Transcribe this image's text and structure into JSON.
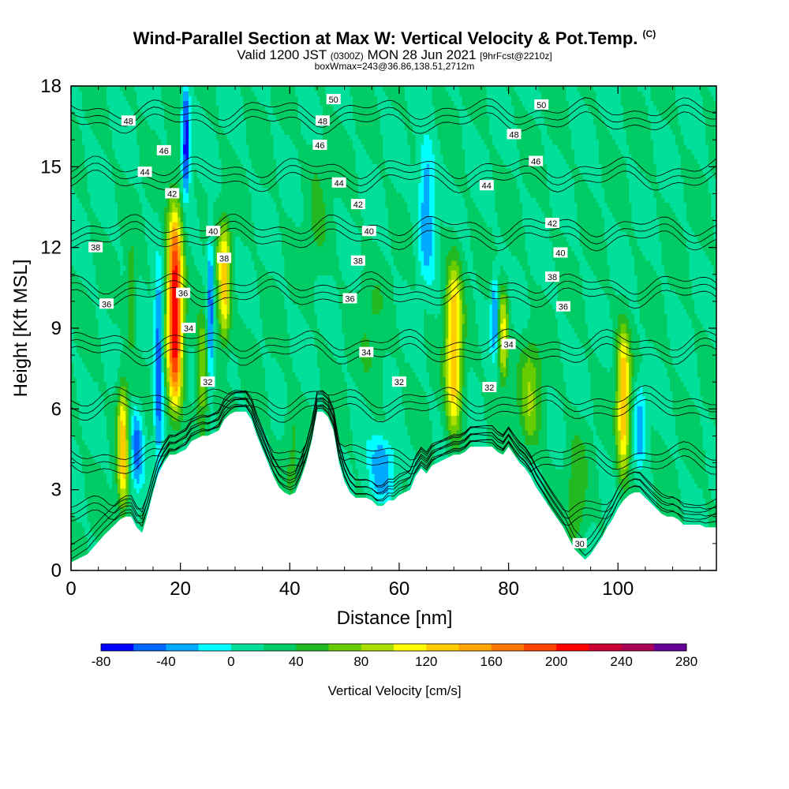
{
  "title": {
    "main": "Wind-Parallel Section at Max W: Vertical Velocity & Pot.Temp.",
    "copyright": "(C)",
    "valid_prefix": "Valid 1200 JST",
    "valid_small1": "(0300Z)",
    "valid_mid": "MON 28 Jun 2021",
    "valid_small2": "[9hrFcst@2210z]",
    "boxw": "boxWmax=243@36.86,138.51,2712m"
  },
  "chart_data": {
    "type": "heatmap",
    "xlabel": "Distance [nm]",
    "ylabel": "Height [Kft MSL]",
    "xlim": [
      0,
      118
    ],
    "ylim": [
      0,
      18
    ],
    "x_ticks": [
      0,
      20,
      40,
      60,
      80,
      100
    ],
    "y_ticks": [
      0,
      3,
      6,
      9,
      12,
      15,
      18
    ],
    "colorbar": {
      "label": "Vertical Velocity [cm/s]",
      "min": -80,
      "max": 280,
      "step": 20,
      "tick_labels": [
        "-80",
        "-40",
        "0",
        "40",
        "80",
        "120",
        "160",
        "200",
        "240",
        "280"
      ],
      "colors": [
        "#0000ff",
        "#0066ff",
        "#00aaff",
        "#00ffff",
        "#00e09a",
        "#00cc66",
        "#22b922",
        "#66cc00",
        "#aadd00",
        "#ffff00",
        "#ffcc00",
        "#ffa500",
        "#ff7700",
        "#ff4400",
        "#ff0000",
        "#cc0033",
        "#aa0055",
        "#660099"
      ]
    },
    "background_w": 20,
    "terrain_profile": {
      "x": [
        0,
        3,
        6,
        9,
        10,
        11,
        12,
        13,
        14,
        15,
        16,
        17,
        18,
        19,
        20,
        21,
        22,
        23,
        24,
        25,
        26,
        27,
        28,
        29,
        30,
        31,
        32,
        33,
        34,
        35,
        36,
        37,
        38,
        39,
        40,
        41,
        42,
        43,
        44,
        45,
        46,
        47,
        48,
        49,
        50,
        51,
        52,
        53,
        54,
        55,
        56,
        57,
        58,
        59,
        60,
        61,
        62,
        63,
        64,
        65,
        66,
        67,
        68,
        69,
        70,
        71,
        72,
        73,
        74,
        75,
        76,
        77,
        78,
        79,
        80,
        81,
        82,
        83,
        84,
        85,
        86,
        87,
        88,
        89,
        90,
        91,
        92,
        93,
        94,
        95,
        96,
        97,
        98,
        99,
        100,
        101,
        102,
        103,
        104,
        105,
        106,
        107,
        108,
        109,
        110,
        111,
        112,
        113,
        114,
        115,
        116,
        118
      ],
      "h": [
        0.3,
        0.6,
        1.3,
        1.9,
        2.0,
        2.0,
        1.6,
        1.4,
        2.1,
        2.9,
        3.6,
        4.0,
        4.3,
        4.3,
        4.4,
        4.5,
        4.8,
        4.9,
        5.0,
        5.0,
        5.1,
        5.2,
        5.6,
        5.8,
        5.9,
        5.9,
        5.9,
        5.6,
        5.0,
        4.5,
        4.0,
        3.5,
        3.1,
        2.9,
        2.8,
        2.9,
        3.4,
        4.0,
        4.8,
        5.9,
        5.9,
        5.7,
        5.2,
        4.0,
        3.3,
        2.9,
        2.7,
        2.7,
        2.7,
        2.6,
        2.4,
        2.4,
        2.6,
        2.6,
        2.8,
        2.9,
        3.0,
        3.5,
        3.8,
        3.6,
        3.9,
        4.0,
        4.1,
        4.2,
        4.3,
        4.3,
        4.4,
        4.6,
        4.6,
        4.6,
        4.6,
        4.6,
        4.4,
        4.3,
        4.6,
        4.3,
        4.0,
        3.8,
        3.5,
        3.1,
        2.8,
        2.5,
        2.2,
        1.9,
        1.6,
        1.2,
        0.8,
        0.6,
        0.4,
        0.6,
        0.9,
        1.2,
        1.6,
        1.9,
        2.3,
        2.6,
        2.8,
        2.9,
        2.9,
        2.7,
        2.5,
        2.3,
        2.1,
        2.0,
        2.0,
        1.9,
        1.7,
        1.7,
        1.7,
        1.7,
        1.6,
        1.6
      ]
    },
    "w_features": [
      {
        "x": 19.0,
        "y0": 6.0,
        "y1": 13.5,
        "halfwidth": 1.4,
        "peak": 220
      },
      {
        "x": 28.0,
        "y0": 8.5,
        "y1": 13.0,
        "halfwidth": 1.2,
        "peak": 130
      },
      {
        "x": 24.0,
        "y0": 5.0,
        "y1": 9.5,
        "halfwidth": 1.0,
        "peak": 80
      },
      {
        "x": 9.5,
        "y0": 2.2,
        "y1": 7.0,
        "halfwidth": 1.0,
        "peak": 130
      },
      {
        "x": 11.0,
        "y0": 8.0,
        "y1": 12.0,
        "halfwidth": 0.8,
        "peak": 60
      },
      {
        "x": 70.0,
        "y0": 5.0,
        "y1": 11.5,
        "halfwidth": 1.5,
        "peak": 140
      },
      {
        "x": 79.0,
        "y0": 7.0,
        "y1": 10.5,
        "halfwidth": 0.9,
        "peak": 110
      },
      {
        "x": 84.0,
        "y0": 4.5,
        "y1": 8.5,
        "halfwidth": 2.0,
        "peak": 75
      },
      {
        "x": 101.0,
        "y0": 3.5,
        "y1": 9.0,
        "halfwidth": 1.2,
        "peak": 140
      },
      {
        "x": 92.5,
        "y0": 0.8,
        "y1": 5.0,
        "halfwidth": 1.8,
        "peak": 55
      },
      {
        "x": 55.0,
        "y0": 6.5,
        "y1": 11.0,
        "halfwidth": 2.5,
        "peak": 40
      },
      {
        "x": 45.0,
        "y0": 11.0,
        "y1": 16.0,
        "halfwidth": 2.0,
        "peak": 40
      },
      {
        "x": 40.5,
        "y0": 2.8,
        "y1": 6.5,
        "halfwidth": 1.5,
        "peak": 45
      },
      {
        "x": 16.0,
        "y0": 4.0,
        "y1": 11.0,
        "halfwidth": 0.8,
        "peak": -60
      },
      {
        "x": 21.0,
        "y0": 14.0,
        "y1": 18.0,
        "halfwidth": 0.7,
        "peak": -80
      },
      {
        "x": 25.5,
        "y0": 7.0,
        "y1": 12.5,
        "halfwidth": 0.6,
        "peak": -50
      },
      {
        "x": 12.0,
        "y0": 3.0,
        "y1": 6.0,
        "halfwidth": 1.2,
        "peak": -50
      },
      {
        "x": 57.0,
        "y0": 2.5,
        "y1": 5.0,
        "halfwidth": 2.5,
        "peak": -40
      },
      {
        "x": 65.0,
        "y0": 11.0,
        "y1": 16.0,
        "halfwidth": 1.5,
        "peak": -40
      },
      {
        "x": 77.5,
        "y0": 8.0,
        "y1": 11.0,
        "halfwidth": 0.7,
        "peak": -45
      },
      {
        "x": 104.0,
        "y0": 4.0,
        "y1": 7.0,
        "halfwidth": 1.0,
        "peak": -30
      }
    ],
    "theta_levels": [
      30,
      32,
      34,
      36,
      38,
      40,
      42,
      44,
      46,
      48,
      50
    ],
    "contour_labels": [
      {
        "text": "50",
        "x": 48.0,
        "y": 17.5
      },
      {
        "text": "50",
        "x": 86.0,
        "y": 17.3
      },
      {
        "text": "48",
        "x": 10.5,
        "y": 16.7
      },
      {
        "text": "48",
        "x": 46.0,
        "y": 16.7
      },
      {
        "text": "48",
        "x": 81.0,
        "y": 16.2
      },
      {
        "text": "46",
        "x": 17.0,
        "y": 15.6
      },
      {
        "text": "46",
        "x": 45.5,
        "y": 15.8
      },
      {
        "text": "46",
        "x": 85.0,
        "y": 15.2
      },
      {
        "text": "44",
        "x": 13.5,
        "y": 14.8
      },
      {
        "text": "44",
        "x": 49.0,
        "y": 14.4
      },
      {
        "text": "44",
        "x": 76.0,
        "y": 14.3
      },
      {
        "text": "42",
        "x": 18.5,
        "y": 14.0
      },
      {
        "text": "42",
        "x": 52.5,
        "y": 13.6
      },
      {
        "text": "42",
        "x": 88.0,
        "y": 12.9
      },
      {
        "text": "40",
        "x": 26.0,
        "y": 12.6
      },
      {
        "text": "40",
        "x": 54.5,
        "y": 12.6
      },
      {
        "text": "40",
        "x": 89.5,
        "y": 11.8
      },
      {
        "text": "38",
        "x": 4.5,
        "y": 12.0
      },
      {
        "text": "38",
        "x": 28.0,
        "y": 11.6
      },
      {
        "text": "38",
        "x": 52.5,
        "y": 11.5
      },
      {
        "text": "38",
        "x": 88.0,
        "y": 10.9
      },
      {
        "text": "36",
        "x": 6.5,
        "y": 9.9
      },
      {
        "text": "36",
        "x": 20.5,
        "y": 10.3
      },
      {
        "text": "36",
        "x": 51.0,
        "y": 10.1
      },
      {
        "text": "36",
        "x": 90.0,
        "y": 9.8
      },
      {
        "text": "34",
        "x": 21.5,
        "y": 9.0
      },
      {
        "text": "34",
        "x": 54.0,
        "y": 8.1
      },
      {
        "text": "34",
        "x": 80.0,
        "y": 8.4
      },
      {
        "text": "32",
        "x": 25.0,
        "y": 7.0
      },
      {
        "text": "32",
        "x": 60.0,
        "y": 7.0
      },
      {
        "text": "32",
        "x": 76.5,
        "y": 6.8
      },
      {
        "text": "30",
        "x": 93.0,
        "y": 1.0
      }
    ]
  }
}
